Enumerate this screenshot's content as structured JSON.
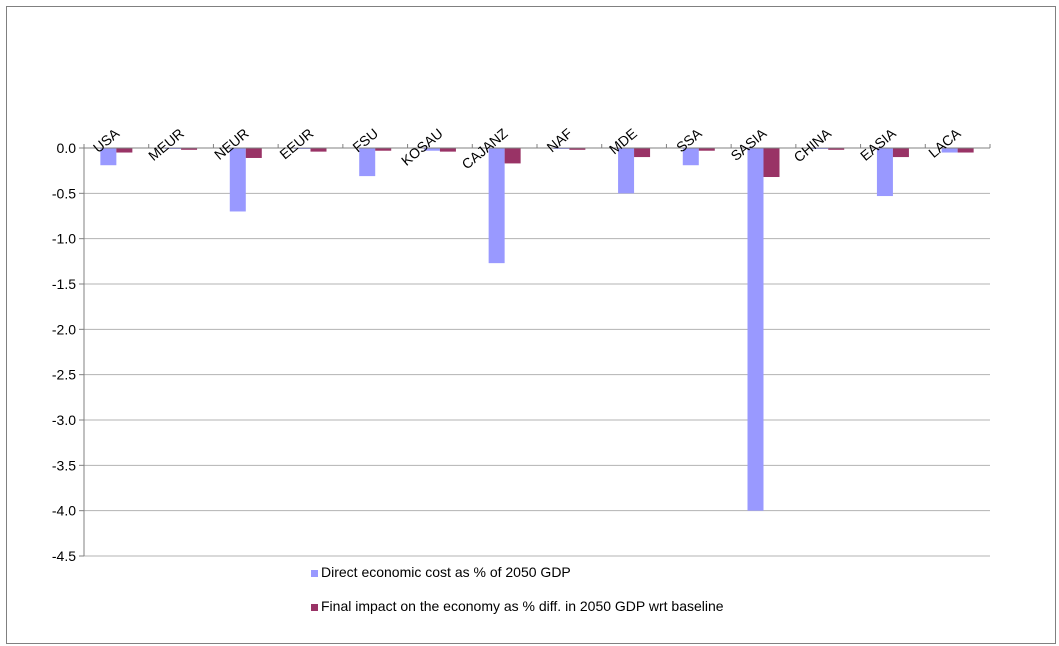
{
  "chart_data": {
    "type": "bar",
    "categories": [
      "USA",
      "MEUR",
      "NEUR",
      "EEUR",
      "FSU",
      "KOSAU",
      "CAJANZ",
      "NAF",
      "MDE",
      "SSA",
      "SASIA",
      "CHINA",
      "EASIA",
      "LACA"
    ],
    "series": [
      {
        "name": "Direct economic cost as % of 2050 GDP",
        "color": "#9999FF",
        "values": [
          -0.19,
          -0.01,
          -0.7,
          -0.01,
          -0.31,
          -0.03,
          -1.27,
          -0.01,
          -0.5,
          -0.19,
          -4.0,
          -0.01,
          -0.53,
          -0.05
        ]
      },
      {
        "name": "Final impact on the economy as % diff. in 2050 GDP wrt baseline",
        "color": "#993366",
        "values": [
          -0.05,
          -0.02,
          -0.11,
          -0.04,
          -0.03,
          -0.04,
          -0.17,
          -0.02,
          -0.1,
          -0.03,
          -0.32,
          -0.02,
          -0.1,
          -0.05
        ]
      }
    ],
    "yticks": [
      "0.0",
      "-0.5",
      "-1.0",
      "-1.5",
      "-2.0",
      "-2.5",
      "-3.0",
      "-3.5",
      "-4.0",
      "-4.5"
    ],
    "ylim": [
      -4.5,
      0
    ],
    "grid": true,
    "legend_position": "bottom",
    "category_label_position": "top-rotated"
  }
}
